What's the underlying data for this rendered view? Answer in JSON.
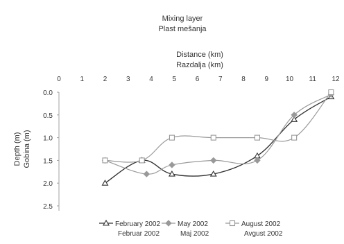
{
  "chart_data": {
    "type": "line",
    "title": [
      "Mixing layer",
      "Plast mešanja"
    ],
    "xlabel": [
      "Distance (km)",
      "Razdalja (km)"
    ],
    "ylabel": [
      "Depth (m)",
      "Gobina (m)"
    ],
    "xaxis_position": "top",
    "yaxis_reversed": true,
    "xlim": [
      0,
      12
    ],
    "ylim": [
      0,
      2.5
    ],
    "xticks": [
      "0",
      "1",
      "2",
      "3",
      "4",
      "5",
      "6",
      "7",
      "8",
      "9",
      "10",
      "11",
      "12"
    ],
    "yticks": [
      "0.0",
      "0.5",
      "1.0",
      "1.5",
      "2.0",
      "2.5"
    ],
    "grid": false,
    "legend_position": "bottom",
    "series": [
      {
        "name": [
          "February 2002",
          "Februar 2002"
        ],
        "marker": "triangle",
        "color": "#333333",
        "x": [
          2.0,
          3.6,
          4.9,
          6.7,
          8.6,
          10.2,
          11.8
        ],
        "y": [
          2.0,
          1.5,
          1.8,
          1.8,
          1.4,
          0.6,
          0.1
        ]
      },
      {
        "name": [
          "May 2002",
          "Maj 2002"
        ],
        "marker": "diamond",
        "color": "#999999",
        "x": [
          2.0,
          3.8,
          4.9,
          6.7,
          8.6,
          10.2,
          11.8
        ],
        "y": [
          1.5,
          1.8,
          1.6,
          1.5,
          1.5,
          0.5,
          0.05
        ]
      },
      {
        "name": [
          "August 2002",
          "Avgust 2002"
        ],
        "marker": "square",
        "color": "#999999",
        "x": [
          2.0,
          3.6,
          4.9,
          6.7,
          8.6,
          10.2,
          11.8
        ],
        "y": [
          1.5,
          1.5,
          1.0,
          1.0,
          1.0,
          1.0,
          0.0
        ]
      }
    ]
  }
}
